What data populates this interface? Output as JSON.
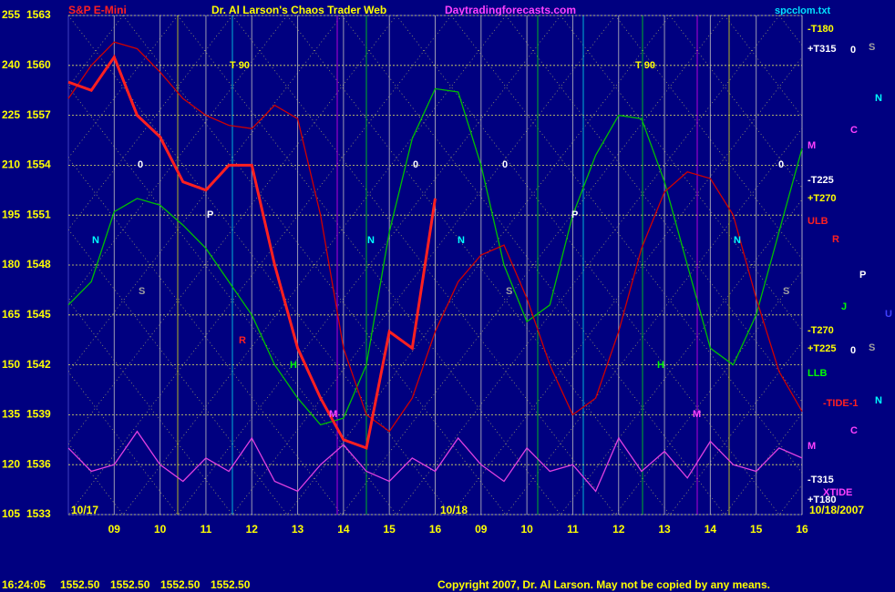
{
  "chart_data": {
    "type": "line",
    "title": "Dr. Al Larson's Chaos Trader Web",
    "instrument": "S&P E-Mini",
    "website": "Daytradingforecasts.com",
    "file": "spcclom.txt",
    "start_date": "10/17",
    "next_date": "10/18",
    "end_date": "10/18/2007",
    "categories": [
      null,
      null,
      "09",
      null,
      "10",
      null,
      "11",
      null,
      "12",
      null,
      "13",
      null,
      "14",
      null,
      "15",
      null,
      "16",
      null,
      "09",
      null,
      "10",
      null,
      "11",
      null,
      "12",
      null,
      "13",
      null,
      "14",
      null,
      "15",
      null,
      "16"
    ],
    "ylim": [
      105,
      255
    ],
    "yticks": [
      255,
      240,
      225,
      210,
      195,
      180,
      165,
      150,
      135,
      120,
      105
    ],
    "y2lim": [
      1533,
      1563
    ],
    "y2ticks": [
      1563,
      1560,
      1557,
      1554,
      1551,
      1548,
      1545,
      1542,
      1539,
      1536,
      1533
    ],
    "grid": true,
    "series": [
      {
        "color": "#00c000",
        "values": [
          168,
          175,
          196,
          200,
          198,
          192,
          185,
          175,
          165,
          150,
          140,
          132,
          134,
          150,
          190,
          218,
          233,
          232,
          210,
          180,
          163,
          168,
          195,
          213,
          225,
          224,
          205,
          180,
          155,
          150,
          165,
          190,
          215
        ]
      },
      {
        "color": "#d00000",
        "values": [
          230,
          240,
          247,
          245,
          238,
          230,
          225,
          222,
          221,
          228,
          224,
          195,
          155,
          135,
          130,
          140,
          160,
          175,
          183,
          186,
          170,
          150,
          135,
          140,
          160,
          185,
          202,
          208,
          206,
          195,
          170,
          148,
          136
        ]
      },
      {
        "color": "#e040e0",
        "values": [
          125,
          118,
          120,
          130,
          120,
          115,
          122,
          118,
          128,
          115,
          112,
          120,
          126,
          118,
          115,
          122,
          118,
          128,
          120,
          115,
          125,
          118,
          120,
          112,
          128,
          118,
          124,
          116,
          127,
          120,
          118,
          125,
          122
        ]
      },
      {
        "color": "#ff2020",
        "axis": "y2",
        "values": [
          1559,
          1558.5,
          1560.5,
          1557,
          1555.7,
          1553,
          1552.5,
          1554,
          1554,
          1548,
          1543,
          1540,
          1537.5,
          1537,
          1544,
          1543,
          1552,
          null,
          null,
          null,
          null,
          null,
          null,
          null,
          null,
          null,
          null,
          null,
          null,
          null,
          null,
          null,
          null
        ]
      }
    ],
    "annotations": [
      "-T180",
      "+T315",
      "T 90",
      "T 90",
      "M",
      "-T225",
      "+T270",
      "ULB",
      "-T270",
      "+T225",
      "LLB",
      "-TIDE-1",
      "M",
      "-T315",
      "XTIDE",
      "+T180",
      "0",
      "S",
      "N",
      "C",
      "R",
      "P",
      "J",
      "U",
      "0",
      "S",
      "N",
      "C",
      "0",
      "0",
      "0",
      "0",
      "P",
      "P",
      "N",
      "N",
      "N",
      "N",
      "S",
      "S",
      "S",
      "R",
      "H",
      "H",
      "M",
      "M"
    ],
    "quote": [
      "16:24:05",
      "1552.50",
      "1552.50",
      "1552.50",
      "1552.50"
    ],
    "copyright": "Copyright 2007, Dr. Al Larson. May not be copied by any means."
  }
}
